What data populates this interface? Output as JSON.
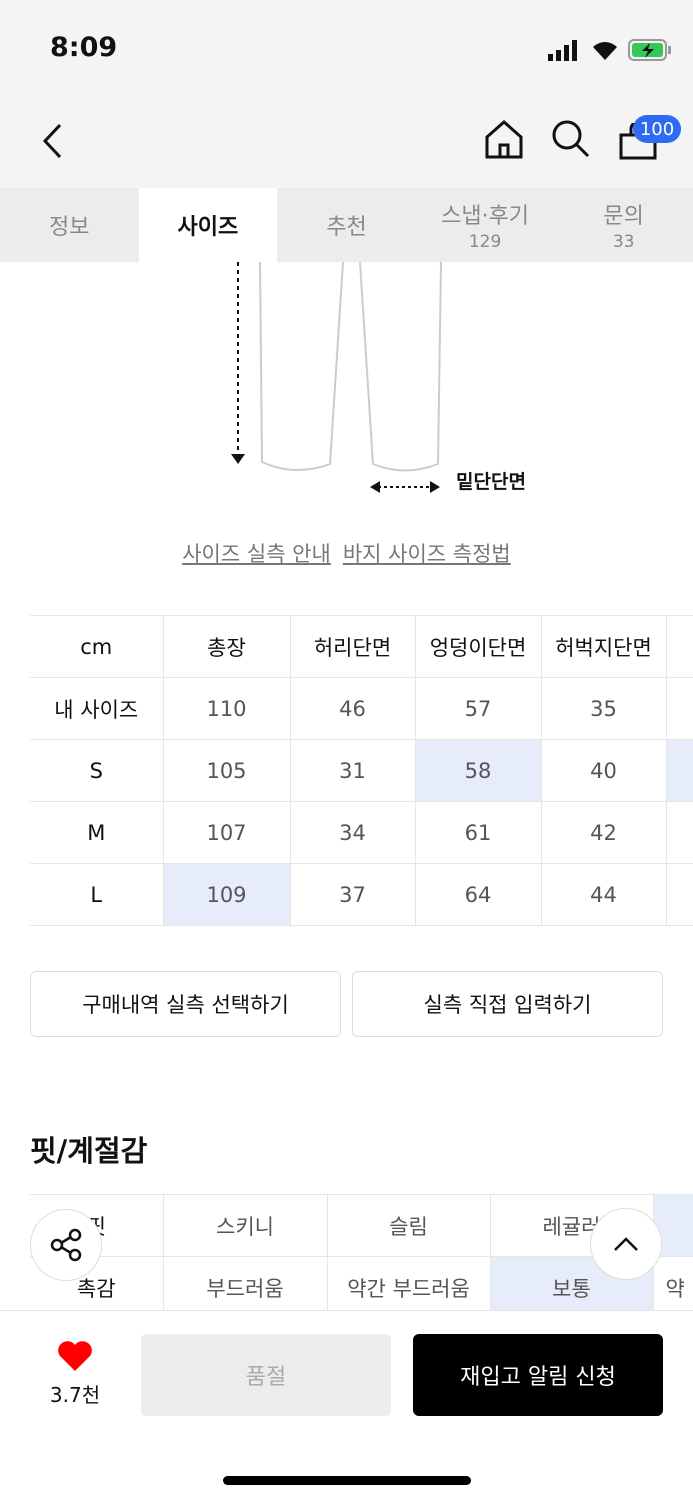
{
  "status": {
    "time": "8:09"
  },
  "header": {
    "cart_count": "100"
  },
  "tabs": [
    {
      "label": "정보"
    },
    {
      "label": "사이즈"
    },
    {
      "label": "추천"
    },
    {
      "label": "스냅·후기",
      "count": "129"
    },
    {
      "label": "문의",
      "count": "33"
    }
  ],
  "diagram": {
    "hem_label": "밑단단면"
  },
  "links": {
    "guide": "사이즈 실측 안내",
    "howto": "바지 사이즈 측정법"
  },
  "size_table": {
    "headers": [
      "cm",
      "총장",
      "허리단면",
      "엉덩이단면",
      "허벅지단면",
      ""
    ],
    "rows": [
      {
        "label": "내 사이즈",
        "values": [
          "110",
          "46",
          "57",
          "35",
          ""
        ]
      },
      {
        "label": "S",
        "values": [
          "105",
          "31",
          "58",
          "40",
          ""
        ]
      },
      {
        "label": "M",
        "values": [
          "107",
          "34",
          "61",
          "42",
          ""
        ]
      },
      {
        "label": "L",
        "values": [
          "109",
          "37",
          "64",
          "44",
          ""
        ]
      }
    ]
  },
  "buttons": {
    "purchase": "구매내역 실측 선택하기",
    "manual": "실측 직접 입력하기"
  },
  "fit": {
    "title": "핏/계절감",
    "rows": [
      {
        "label": "핏",
        "values": [
          "스키니",
          "슬림",
          "레귤러",
          ""
        ]
      },
      {
        "label": "촉감",
        "values": [
          "부드러움",
          "약간 부드러움",
          "보통",
          "약"
        ]
      }
    ]
  },
  "bottom": {
    "likes": "3.7천",
    "soldout": "품절",
    "restock": "재입고 알림 신청"
  },
  "colors": {
    "highlight": "#e7ecfb",
    "badge": "#2f6bf0",
    "heart": "#ff0000"
  }
}
